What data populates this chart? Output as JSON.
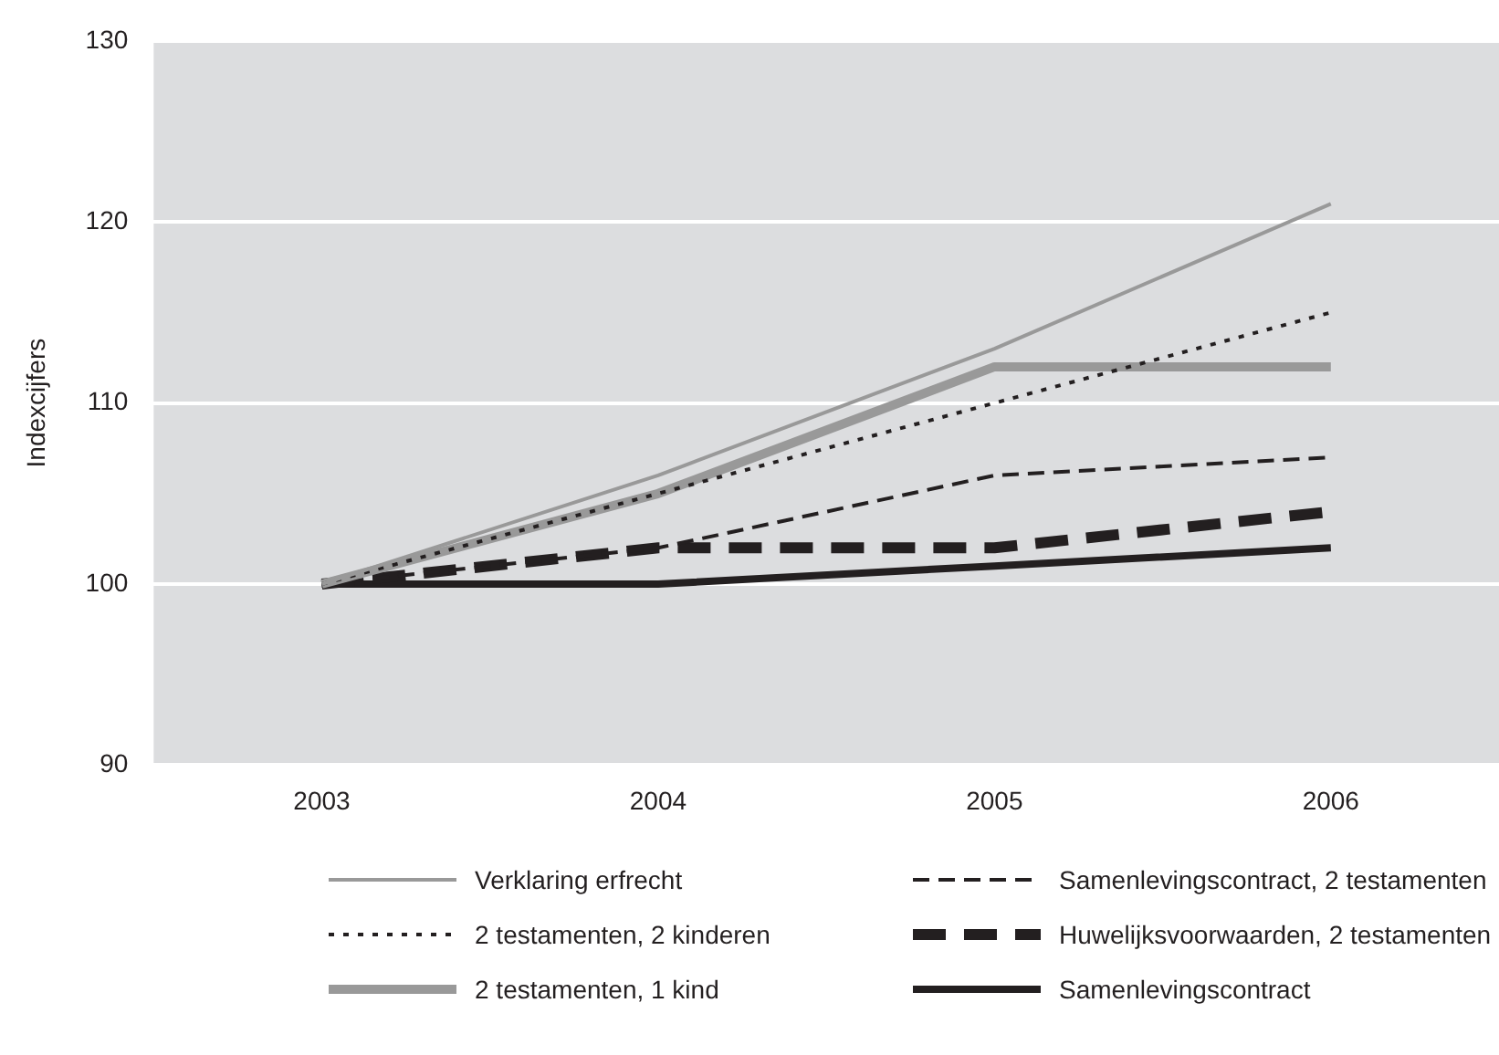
{
  "chart_data": {
    "type": "line",
    "ylabel": "Indexcijfers",
    "categories": [
      "2003",
      "2004",
      "2005",
      "2006"
    ],
    "ylim": [
      90,
      130
    ],
    "yticks": [
      90,
      100,
      110,
      120,
      130
    ],
    "grid": "y",
    "legend": "bottom",
    "marker": "none",
    "series": [
      {
        "name": "Verklaring erfrecht",
        "color": "#999999",
        "line_style": "solid",
        "values": [
          100,
          106,
          113,
          121
        ]
      },
      {
        "name": "2 testamenten, 2 kinderen",
        "color": "#231f20",
        "line_style": "dotted",
        "values": [
          100,
          105,
          110,
          115
        ]
      },
      {
        "name": "2 testamenten, 1 kind",
        "color": "#999999",
        "line_style": "solid",
        "values": [
          100,
          105,
          112,
          112
        ]
      },
      {
        "name": "Samenlevingscontract, 2 testamenten",
        "color": "#231f20",
        "line_style": "dashed",
        "values": [
          100,
          102,
          106,
          107
        ]
      },
      {
        "name": "Huwelijksvoorwaarden, 2 testamenten",
        "color": "#231f20",
        "line_style": "dashed",
        "values": [
          100,
          102,
          102,
          104
        ]
      },
      {
        "name": "Samenlevingscontract",
        "color": "#231f20",
        "line_style": "solid",
        "values": [
          100,
          100,
          101,
          102
        ]
      }
    ]
  }
}
